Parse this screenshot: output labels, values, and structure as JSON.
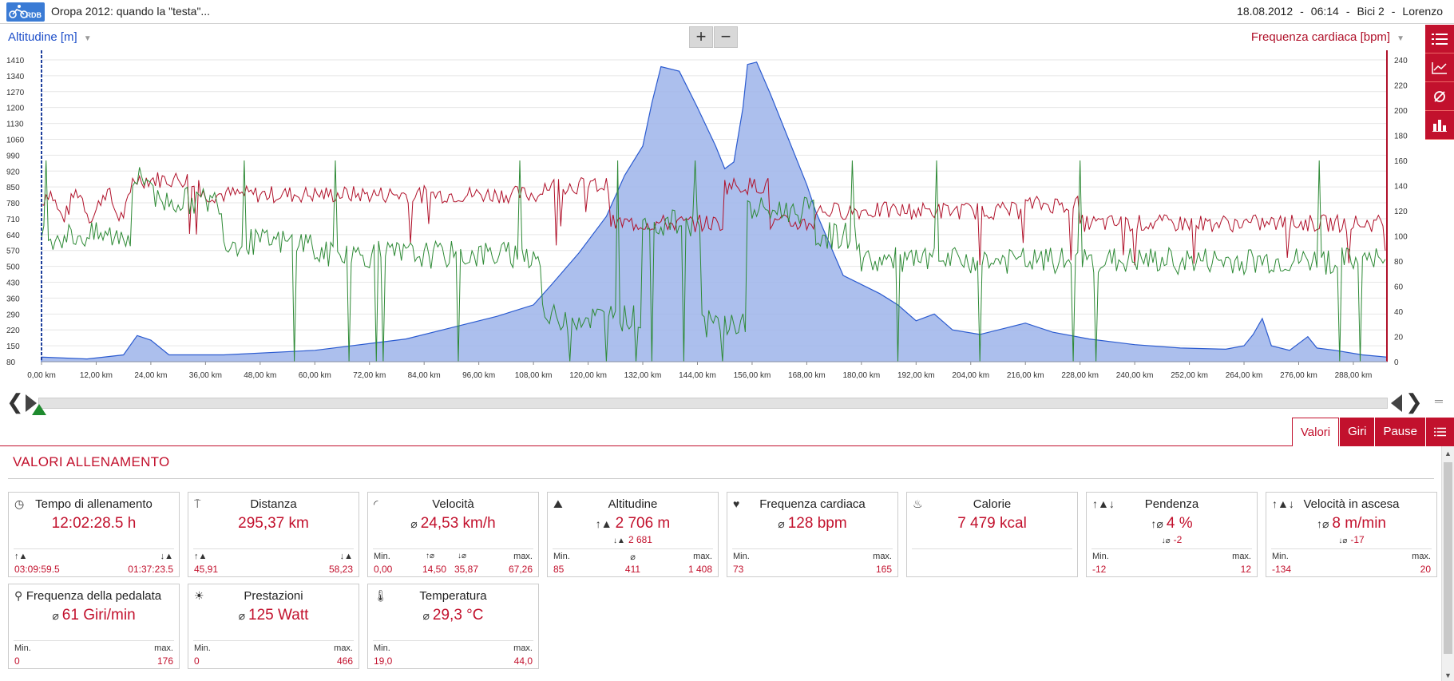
{
  "header": {
    "logo_text": "RDB",
    "title": "Oropa 2012: quando la \"testa\"...",
    "date": "18.08.2012",
    "sep1": "-",
    "time": "06:14",
    "sep2": "-",
    "bike": "Bici 2",
    "sep3": "-",
    "user": "Lorenzo"
  },
  "chart": {
    "left_axis_title": "Altitudine [m]",
    "right_axis_title": "Frequenza cardiaca [bpm]",
    "zoom_in": "+",
    "zoom_out": "−"
  },
  "chart_data": {
    "type": "area",
    "xlabel": "",
    "x_ticks": [
      "0,00 km",
      "12,00 km",
      "24,00 km",
      "36,00 km",
      "48,00 km",
      "60,00 km",
      "72,00 km",
      "84,00 km",
      "96,00 km",
      "108,00 km",
      "120,00 km",
      "132,00 km",
      "144,00 km",
      "156,00 km",
      "168,00 km",
      "180,00 km",
      "192,00 km",
      "204,00 km",
      "216,00 km",
      "228,00 km",
      "240,00 km",
      "252,00 km",
      "264,00 km",
      "276,00 km",
      "288,00 km"
    ],
    "x_range_km": [
      0,
      295.37
    ],
    "left_axis": {
      "label": "Altitudine [m]",
      "ticks": [
        1410,
        1340,
        1270,
        1200,
        1130,
        1060,
        990,
        920,
        850,
        780,
        710,
        640,
        570,
        500,
        430,
        360,
        290,
        220,
        150,
        80
      ],
      "range": [
        80,
        1410
      ]
    },
    "right_axis": {
      "label": "Frequenza cardiaca [bpm]",
      "ticks": [
        240,
        220,
        200,
        180,
        160,
        140,
        120,
        100,
        80,
        60,
        40,
        20,
        0
      ],
      "range": [
        0,
        240
      ]
    },
    "series": [
      {
        "name": "Altitudine [m]",
        "color": "#9db4ea",
        "stroke": "#2b5bd0",
        "type": "area",
        "x": [
          0,
          10,
          18,
          21,
          24,
          28,
          40,
          60,
          80,
          90,
          100,
          108,
          112,
          118,
          124,
          128,
          132,
          134,
          136,
          140,
          144,
          148,
          150,
          152,
          154,
          155,
          157,
          160,
          164,
          168,
          170,
          176,
          184,
          188,
          192,
          196,
          200,
          206,
          212,
          216,
          222,
          230,
          240,
          250,
          260,
          264,
          266,
          268,
          270,
          274,
          278,
          280,
          284,
          290,
          295.37
        ],
        "y": [
          100,
          92,
          110,
          195,
          175,
          110,
          110,
          130,
          180,
          230,
          280,
          330,
          420,
          560,
          720,
          900,
          1030,
          1220,
          1380,
          1360,
          1200,
          1030,
          930,
          960,
          1200,
          1390,
          1400,
          1260,
          1060,
          860,
          740,
          460,
          380,
          330,
          260,
          290,
          220,
          200,
          230,
          250,
          210,
          180,
          155,
          140,
          135,
          150,
          200,
          270,
          150,
          130,
          190,
          140,
          130,
          110,
          100
        ]
      },
      {
        "name": "Frequenza cardiaca [bpm]",
        "color": "#b0112a",
        "type": "line",
        "x": [],
        "y": []
      },
      {
        "name": "Frequenza della pedalata",
        "color": "#2e8a36",
        "type": "line",
        "x": [],
        "y": []
      }
    ],
    "grid": true
  },
  "tabs": [
    {
      "label": "Valori"
    },
    {
      "label": "Giri"
    },
    {
      "label": "Pause"
    }
  ],
  "panel": {
    "title": "VALORI ALLENAMENTO"
  },
  "cards": {
    "tempo": {
      "title": "Tempo di allenamento",
      "value": "12:02:28.5 h",
      "left": "03:09:59.5",
      "right": "01:37:23.5"
    },
    "distanza": {
      "title": "Distanza",
      "value": "295,37 km",
      "left": "45,91",
      "right": "58,23"
    },
    "velocita": {
      "title": "Velocità",
      "value": "24,53 km/h",
      "avg_sym": "⌀",
      "min_label": "Min.",
      "max_label": "max.",
      "min": "0,00",
      "up": "14,50",
      "down": "35,87",
      "max": "67,26"
    },
    "altitudine": {
      "title": "Altitudine",
      "value": "2 706 m",
      "sub": "2 681",
      "min_label": "Min.",
      "max_label": "max.",
      "min": "85",
      "avg": "411",
      "max": "1 408",
      "avg_sym": "⌀"
    },
    "frequenza": {
      "title": "Frequenza cardiaca",
      "value": "128 bpm",
      "avg_sym": "⌀",
      "min_label": "Min.",
      "max_label": "max.",
      "min": "73",
      "max": "165"
    },
    "calorie": {
      "title": "Calorie",
      "value": "7 479 kcal"
    },
    "pendenza": {
      "title": "Pendenza",
      "value": "4 %",
      "sub": "-2",
      "min_label": "Min.",
      "max_label": "max.",
      "min": "-12",
      "max": "12"
    },
    "vel_ascesa": {
      "title": "Velocità in ascesa",
      "value": "8 m/min",
      "sub": "-17",
      "min_label": "Min.",
      "max_label": "max.",
      "min": "-134",
      "max": "20"
    },
    "pedalata": {
      "title": "Frequenza della pedalata",
      "value": "61 Giri/min",
      "avg_sym": "⌀",
      "min_label": "Min.",
      "max_label": "max.",
      "min": "0",
      "max": "176"
    },
    "prestazioni": {
      "title": "Prestazioni",
      "value": "125 Watt",
      "avg_sym": "⌀",
      "min_label": "Min.",
      "max_label": "max.",
      "min": "0",
      "max": "466"
    },
    "temperatura": {
      "title": "Temperatura",
      "value": "29,3 °C",
      "avg_sym": "⌀",
      "min_label": "Min.",
      "max_label": "max.",
      "min": "19,0",
      "max": "44,0"
    }
  },
  "colors": {
    "accent": "#c2112d",
    "altitude_fill": "#9db4ea",
    "altitude_stroke": "#2b5bd0",
    "heart_rate": "#b0112a",
    "cadence": "#2e8a36"
  },
  "icons": [
    "bike-logo-icon",
    "list-icon",
    "line-chart-icon",
    "average-icon",
    "bar-chart-icon",
    "clock-icon",
    "signpost-icon",
    "speedometer-icon",
    "mountain-icon",
    "heart-icon",
    "flame-icon",
    "slope-icon",
    "cadence-icon",
    "bulb-icon",
    "thermometer-icon"
  ]
}
